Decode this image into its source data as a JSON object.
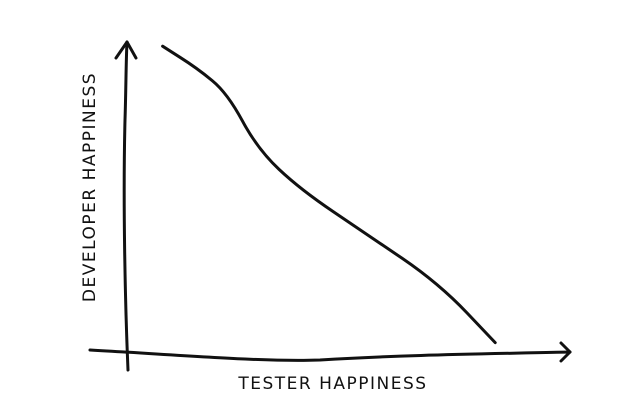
{
  "chart_data": {
    "type": "line",
    "title": "",
    "xlabel": "TESTER HAPPINESS",
    "ylabel": "DEVELOPER HAPPINESS",
    "xlim": [
      0,
      100
    ],
    "ylim": [
      0,
      100
    ],
    "grid": false,
    "series": [
      {
        "x": [
          8,
          16,
          23,
          30,
          40,
          55,
          72,
          85
        ],
        "y": [
          98,
          91,
          83,
          65,
          52,
          38,
          22,
          3
        ]
      }
    ]
  }
}
